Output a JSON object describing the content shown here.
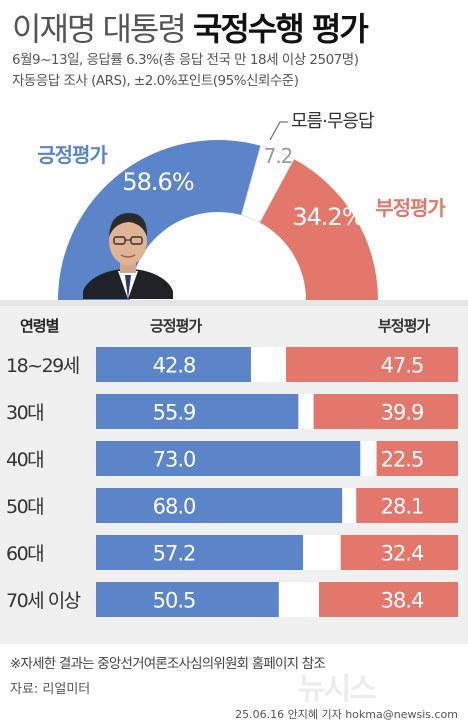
{
  "title": {
    "light": "이재명 대통령",
    "bold": "국정수행 평가"
  },
  "subtitle_lines": [
    "6월9~13일, 응답률 6.3%(총 응답 전국 만 18세 이상 2507명)",
    "자동응답 조사 (ARS), ±2.0%포인트(95%신뢰수준)"
  ],
  "colors": {
    "positive": "#5b84c9",
    "negative": "#e3776c",
    "unknown": "#ffffff",
    "background_panel": "#f0f0f0"
  },
  "chart_data": [
    {
      "type": "pie",
      "subtype": "half-donut",
      "slices": [
        {
          "name": "긍정평가",
          "value": 58.6,
          "label": "58.6%"
        },
        {
          "name": "모름·무응답",
          "value": 7.2,
          "label": "7.2"
        },
        {
          "name": "부정평가",
          "value": 34.2,
          "label": "34.2%"
        }
      ]
    },
    {
      "type": "bar",
      "orientation": "horizontal",
      "stacked": true,
      "row_header": "연령별",
      "categories": [
        "18~29세",
        "30대",
        "40대",
        "50대",
        "60대",
        "70세 이상"
      ],
      "series": [
        {
          "name": "긍정평가",
          "values": [
            42.8,
            55.9,
            73.0,
            68.0,
            57.2,
            50.5
          ]
        },
        {
          "name": "부정평가",
          "values": [
            47.5,
            39.9,
            22.5,
            28.1,
            32.4,
            38.4
          ]
        }
      ],
      "value_labels": {
        "positive": [
          "42.8",
          "55.9",
          "73.0",
          "68.0",
          "57.2",
          "50.5"
        ],
        "negative": [
          "47.5",
          "39.9",
          "22.5",
          "28.1",
          "32.4",
          "38.4"
        ]
      }
    }
  ],
  "footer": {
    "note": "※자세한 결과는 중앙선거여론조사심의위원회 홈페이지 참조",
    "source": "자료: 리얼미터",
    "watermark": "뉴시스",
    "credit": "25.06.16 안지혜 기자 hokma@newsis.com"
  }
}
